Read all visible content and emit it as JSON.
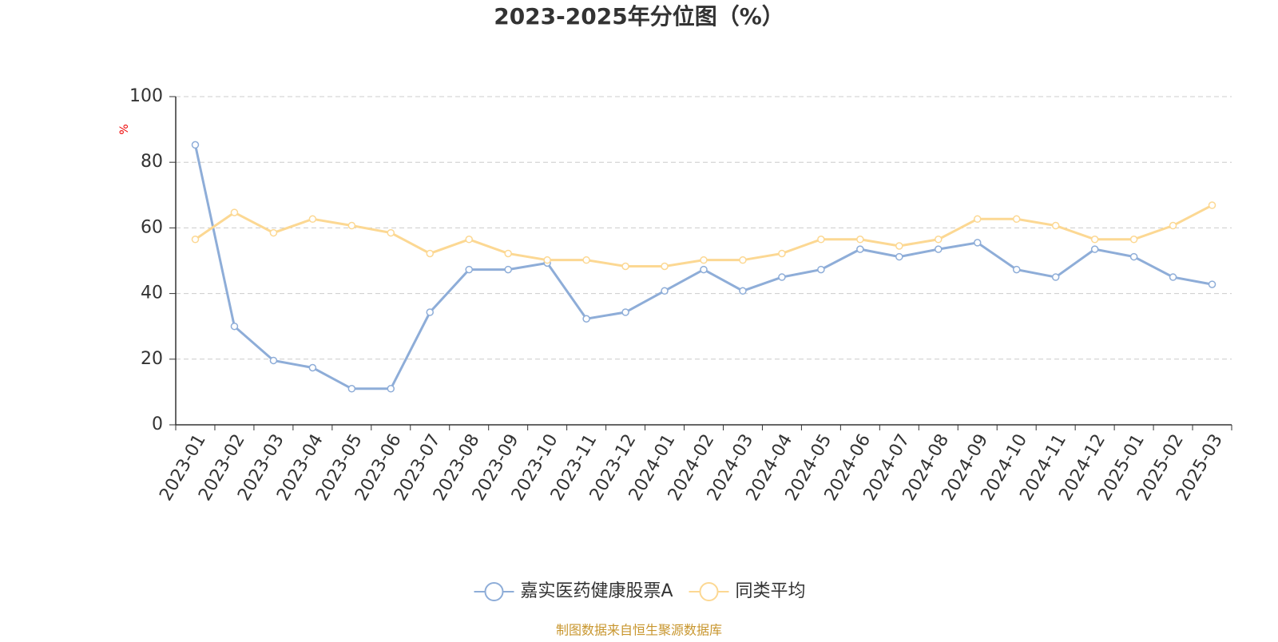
{
  "chart_data": {
    "type": "line",
    "title": "2023-2025年分位图（%）",
    "y_label": "%",
    "categories": [
      "2023-01",
      "2023-02",
      "2023-03",
      "2023-04",
      "2023-05",
      "2023-06",
      "2023-07",
      "2023-08",
      "2023-09",
      "2023-10",
      "2023-11",
      "2023-12",
      "2024-01",
      "2024-02",
      "2024-03",
      "2024-04",
      "2024-05",
      "2024-06",
      "2024-07",
      "2024-08",
      "2024-09",
      "2024-10",
      "2024-11",
      "2024-12",
      "2025-01",
      "2025-02",
      "2025-03"
    ],
    "series": [
      {
        "name": "嘉实医药健康股票A",
        "color": "#8eadd8",
        "values": [
          85.3,
          30,
          19.6,
          17.4,
          11,
          11,
          34.3,
          47.3,
          47.3,
          49.3,
          32.3,
          34.3,
          40.8,
          47.3,
          40.8,
          45,
          47.3,
          53.5,
          51.2,
          53.5,
          55.5,
          47.3,
          45,
          53.5,
          51.2,
          45,
          42.8
        ]
      },
      {
        "name": "同类平均",
        "color": "#fcd893",
        "values": [
          56.5,
          64.7,
          58.5,
          62.7,
          60.7,
          58.5,
          52.2,
          56.5,
          52.2,
          50.2,
          50.2,
          48.3,
          48.3,
          50.2,
          50.2,
          52.2,
          56.5,
          56.5,
          54.5,
          56.5,
          62.7,
          62.7,
          60.7,
          56.5,
          56.5,
          60.7,
          66.9
        ]
      }
    ],
    "ylim": [
      0,
      100
    ],
    "yticks": [
      0,
      20,
      40,
      60,
      80,
      100
    ],
    "grid": true,
    "legend": "bottom",
    "source": "制图数据来自恒生聚源数据库"
  }
}
